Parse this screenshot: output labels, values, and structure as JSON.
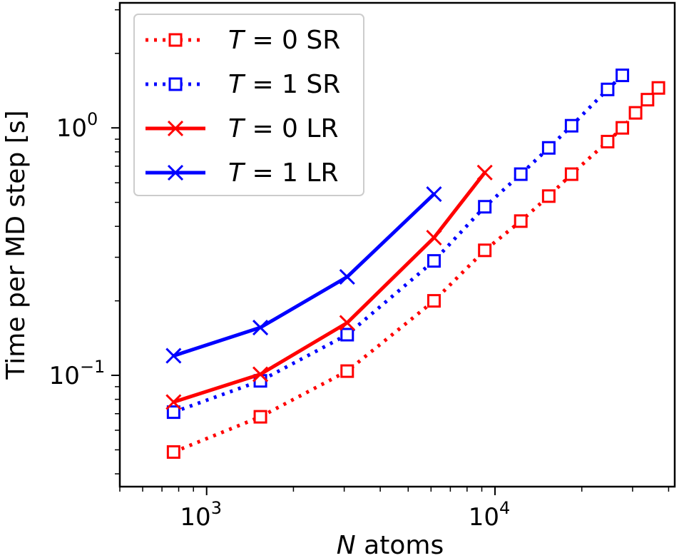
{
  "chart_data": {
    "type": "line",
    "xscale": "log",
    "yscale": "log",
    "xlim": [
      500,
      42000
    ],
    "ylim": [
      0.0355,
      3.2
    ],
    "xlabel": "atoms",
    "xlabel_var": "N",
    "ylabel": "Time per MD step [s]",
    "xticks": [
      {
        "value": 1000,
        "base": "10",
        "exp": "3"
      },
      {
        "value": 10000,
        "base": "10",
        "exp": "4"
      }
    ],
    "yticks": [
      {
        "value": 0.1,
        "base": "10",
        "exp": "−1"
      },
      {
        "value": 1,
        "base": "10",
        "exp": "0"
      }
    ],
    "legend_position": "top-left",
    "series": [
      {
        "name": "T = 0 SR",
        "legend_var": "T",
        "legend_rest": " = 0 SR",
        "color": "#ff0000",
        "linestyle": "dotted",
        "marker": "square",
        "x": [
          768,
          1536,
          3072,
          6144,
          9216,
          12288,
          15360,
          18432,
          24576,
          27648,
          30720,
          33792,
          36864
        ],
        "y": [
          0.049,
          0.068,
          0.104,
          0.2,
          0.32,
          0.42,
          0.53,
          0.65,
          0.88,
          1.0,
          1.15,
          1.3,
          1.45
        ]
      },
      {
        "name": "T = 1 SR",
        "legend_var": "T",
        "legend_rest": " = 1 SR",
        "color": "#0000ff",
        "linestyle": "dotted",
        "marker": "square",
        "x": [
          768,
          1536,
          3072,
          6144,
          9216,
          12288,
          15360,
          18432,
          24576,
          27648
        ],
        "y": [
          0.071,
          0.095,
          0.146,
          0.29,
          0.48,
          0.65,
          0.83,
          1.02,
          1.43,
          1.63
        ]
      },
      {
        "name": "T = 0 LR",
        "legend_var": "T",
        "legend_rest": " = 0 LR",
        "color": "#ff0000",
        "linestyle": "solid",
        "marker": "x",
        "x": [
          768,
          1536,
          3072,
          6144,
          9216
        ],
        "y": [
          0.078,
          0.101,
          0.163,
          0.36,
          0.66
        ]
      },
      {
        "name": "T = 1 LR",
        "legend_var": "T",
        "legend_rest": " = 1 LR",
        "color": "#0000ff",
        "linestyle": "solid",
        "marker": "x",
        "x": [
          768,
          1536,
          3072,
          6144
        ],
        "y": [
          0.12,
          0.156,
          0.25,
          0.54
        ]
      }
    ]
  }
}
